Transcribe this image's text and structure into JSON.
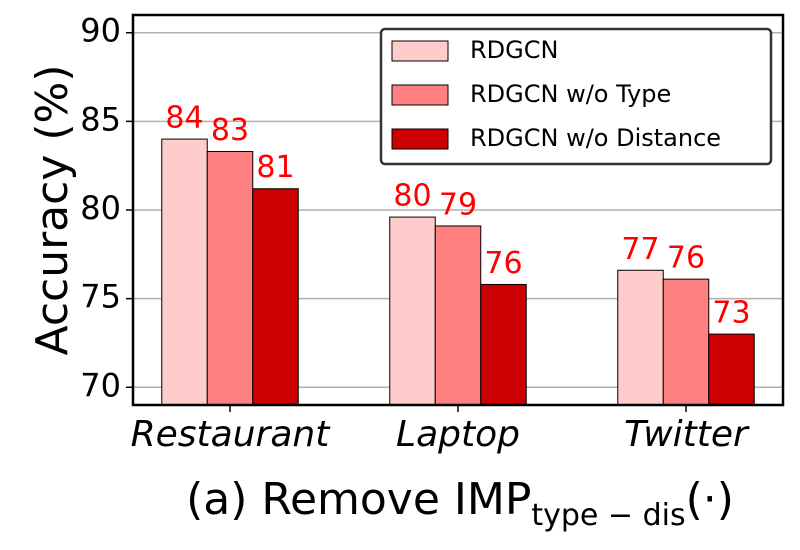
{
  "chart_data": {
    "type": "bar",
    "ylabel": "Accuracy (%)",
    "xlabel": [
      "(a) Remove IMP",
      "type − dis",
      "(·)"
    ],
    "categories": [
      "Restaurant",
      "Laptop",
      "Twitter"
    ],
    "series": [
      {
        "name": "RDGCN",
        "color": "#ffcccc",
        "values": [
          84.0,
          79.6,
          76.6
        ],
        "value_labels": [
          "84",
          "80",
          "77"
        ]
      },
      {
        "name": "RDGCN w/o Type",
        "color": "#ff8080",
        "values": [
          83.3,
          79.1,
          76.1
        ],
        "value_labels": [
          "83",
          "79",
          "76"
        ]
      },
      {
        "name": "RDGCN w/o Distance",
        "color": "#cc0000",
        "values": [
          81.2,
          75.8,
          73.0
        ],
        "value_labels": [
          "81",
          "76",
          "73"
        ]
      }
    ],
    "label_color": "#ff0000",
    "ylim": [
      69,
      91
    ],
    "yticks": [
      70,
      75,
      80,
      85,
      90
    ],
    "grid": true,
    "legend": "upper right"
  }
}
